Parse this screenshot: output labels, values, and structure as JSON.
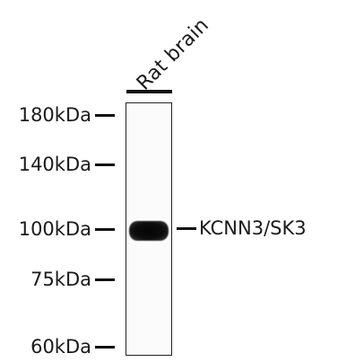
{
  "lane": {
    "label": "Rat brain"
  },
  "markers": [
    {
      "label": "180kDa"
    },
    {
      "label": "140kDa"
    },
    {
      "label": "100kDa"
    },
    {
      "label": "75kDa"
    },
    {
      "label": "60kDa"
    }
  ],
  "band": {
    "label": "KCNN3/SK3"
  }
}
